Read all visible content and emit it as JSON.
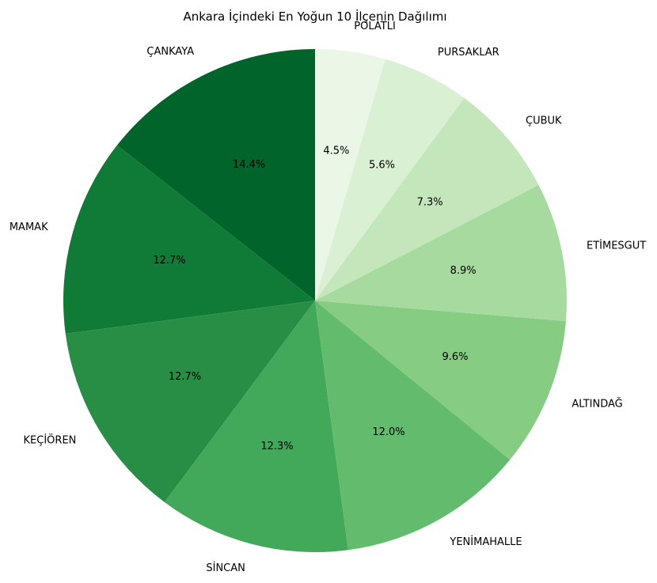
{
  "chart_data": {
    "type": "pie",
    "title": "Ankara İçindeki En Yoğun 10 İlçenin Dağılımı",
    "categories": [
      "ÇANKAYA",
      "MAMAK",
      "KEÇİÖREN",
      "SİNCAN",
      "YENİMAHALLE",
      "ALTINDAĞ",
      "ETİMESGUT",
      "ÇUBUK",
      "PURSAKLAR",
      "POLATLI"
    ],
    "values": [
      14.4,
      12.7,
      12.7,
      12.3,
      12.0,
      9.6,
      8.9,
      7.3,
      5.6,
      4.5
    ],
    "value_labels": [
      "14.4%",
      "12.7%",
      "12.7%",
      "12.3%",
      "12.0%",
      "9.6%",
      "8.9%",
      "7.3%",
      "5.6%",
      "4.5%"
    ],
    "colors": [
      "#00642b",
      "#107a37",
      "#288e46",
      "#42a85a",
      "#63bb6e",
      "#87cc83",
      "#a7da9e",
      "#c3e7bb",
      "#d9f0d3",
      "#eaf6e6"
    ],
    "start_angle_deg": 90,
    "direction": "counterclockwise",
    "legend": "none"
  }
}
